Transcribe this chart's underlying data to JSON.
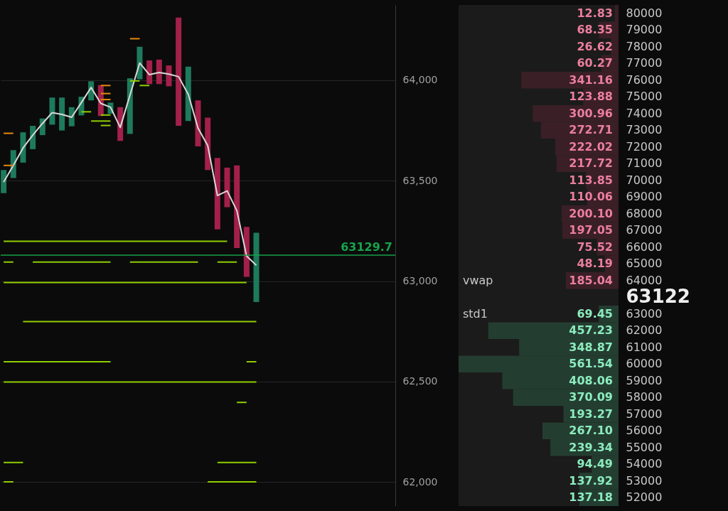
{
  "chart_data": [
    {
      "type": "bar",
      "categories": [
        null,
        null,
        null,
        null,
        null,
        null,
        null,
        null,
        null,
        null,
        null,
        null,
        null,
        null,
        null,
        null,
        null,
        null,
        null,
        null,
        null,
        null,
        null,
        null,
        null,
        null,
        null,
        null,
        null,
        null,
        null,
        null,
        null,
        null,
        null,
        null,
        null,
        null,
        null,
        null,
        null
      ],
      "ylim": [
        61880,
        64375
      ],
      "yticks": [
        {
          "value": 62000,
          "label": "62,000"
        },
        {
          "value": 62500,
          "label": "62,500"
        },
        {
          "value": 63000,
          "label": "63,000"
        },
        {
          "value": 63500,
          "label": "63,500"
        },
        {
          "value": 64000,
          "label": "64,000"
        }
      ],
      "grid": "y",
      "tick_labels": "y",
      "series": [
        {
          "type": "bar",
          "base": [
            63438,
            63513,
            63590,
            63657,
            63727,
            63779,
            63750,
            63771,
            63825,
            63900,
            63822,
            63833,
            63698,
            63733,
            64005,
            63981,
            63981,
            63970,
            63773,
            63797,
            63671,
            63553,
            63258,
            63368,
            63165,
            63021,
            62896,
            null,
            null,
            null,
            null,
            null,
            null,
            null,
            null,
            null,
            null,
            null,
            null,
            null,
            null
          ],
          "values": [
            115,
            139,
            151,
            116,
            83,
            135,
            164,
            95,
            93,
            95,
            154,
            56,
            168,
            277,
            162,
            118,
            122,
            104,
            539,
            271,
            229,
            261,
            355,
            197,
            411,
            249,
            345,
            null,
            null,
            null,
            null,
            null,
            null,
            null,
            null,
            null,
            null,
            null,
            null,
            null,
            null
          ],
          "colors": [
            "#1e7a5c",
            "#1e7a5c",
            "#1e7a5c",
            "#1e7a5c",
            "#1e7a5c",
            "#1e7a5c",
            "#1e7a5c",
            "#1e7a5c",
            "#1e7a5c",
            "#1e7a5c",
            "#a3204a",
            "#1e7a5c",
            "#a3204a",
            "#1e7a5c",
            "#1e7a5c",
            "#a3204a",
            "#a3204a",
            "#a3204a",
            "#a3204a",
            "#1e7a5c",
            "#a3204a",
            "#a3204a",
            "#a3204a",
            "#a3204a",
            "#a3204a",
            "#a3204a",
            "#1e7a5c",
            null,
            null,
            null,
            null,
            null,
            null,
            null,
            null,
            null,
            null,
            null,
            null,
            null,
            null
          ]
        },
        {
          "type": "line",
          "color": "#d8d8d8",
          "values": [
            63493,
            63576,
            63663,
            63727,
            63785,
            63839,
            63830,
            63816,
            63889,
            63964,
            63885,
            63866,
            63765,
            63926,
            64086,
            64028,
            64039,
            64031,
            64018,
            63930,
            63762,
            63675,
            63426,
            63449,
            63351,
            63125,
            63079,
            null,
            null,
            null,
            null,
            null,
            null,
            null,
            null,
            null,
            null,
            null,
            null,
            null,
            null
          ]
        },
        {
          "type": "line",
          "color": "#8fce00",
          "values": [
            63198,
            63198,
            63198,
            63198,
            63198,
            63198,
            63198,
            63198,
            63198,
            63198,
            63198,
            63198,
            63198,
            63198,
            63198,
            63198,
            63198,
            63198,
            63198,
            63198,
            63198,
            63198,
            63198,
            63198,
            null,
            null,
            null,
            null,
            null,
            null,
            null,
            null,
            null,
            null,
            null,
            null,
            null,
            null,
            null,
            null,
            null
          ]
        },
        {
          "type": "line",
          "color": "#8fce00",
          "values": [
            63095,
            63095,
            null,
            63095,
            63095,
            63095,
            63095,
            63095,
            63095,
            63095,
            63095,
            63095,
            null,
            63095,
            63095,
            63095,
            63095,
            63095,
            63095,
            63095,
            63095,
            null,
            63095,
            63095,
            63095,
            null,
            null,
            null,
            null,
            null,
            null,
            null,
            null,
            null,
            null,
            null,
            null,
            null,
            null,
            null,
            null
          ]
        },
        {
          "type": "line",
          "color": "#8fce00",
          "values": [
            62993,
            62993,
            62993,
            62993,
            62993,
            62993,
            62993,
            62993,
            62993,
            62993,
            62993,
            62993,
            62993,
            62993,
            62993,
            62993,
            62993,
            62993,
            62993,
            62993,
            62993,
            62993,
            62993,
            62993,
            62993,
            62993,
            null,
            null,
            null,
            null,
            null,
            null,
            null,
            null,
            null,
            null,
            null,
            null,
            null,
            null,
            null
          ]
        },
        {
          "type": "line",
          "color": "#8fce00",
          "values": [
            null,
            null,
            62798,
            62798,
            62798,
            62798,
            62798,
            62798,
            62798,
            62798,
            62798,
            62798,
            62798,
            62798,
            62798,
            62798,
            62798,
            62798,
            62798,
            62798,
            62798,
            62798,
            62798,
            62798,
            62798,
            62798,
            62798,
            null,
            null,
            null,
            null,
            null,
            null,
            null,
            null,
            null,
            null,
            null,
            null,
            null,
            null
          ]
        },
        {
          "type": "line",
          "color": "#8fce00",
          "values": [
            62598,
            62598,
            62598,
            62598,
            62598,
            62598,
            62598,
            62598,
            62598,
            62598,
            62598,
            62598,
            null,
            null,
            null,
            null,
            null,
            null,
            null,
            null,
            null,
            null,
            null,
            null,
            null,
            62598,
            62598,
            null,
            null,
            null,
            null,
            null,
            null,
            null,
            null,
            null,
            null,
            null,
            null,
            null,
            null
          ]
        },
        {
          "type": "line",
          "color": "#8fce00",
          "values": [
            62498,
            62498,
            62498,
            62498,
            62498,
            62498,
            62498,
            62498,
            62498,
            62498,
            62498,
            62498,
            62498,
            62498,
            62498,
            62498,
            62498,
            62498,
            62498,
            62498,
            62498,
            62498,
            62498,
            62498,
            62498,
            62498,
            62498,
            null,
            null,
            null,
            null,
            null,
            null,
            null,
            null,
            null,
            null,
            null,
            null,
            null,
            null
          ]
        },
        {
          "type": "line",
          "color": "#8fce00",
          "values": [
            null,
            null,
            null,
            null,
            null,
            null,
            null,
            null,
            null,
            null,
            null,
            null,
            null,
            null,
            null,
            null,
            null,
            null,
            null,
            null,
            null,
            null,
            null,
            null,
            62396,
            62396,
            null,
            null,
            null,
            null,
            null,
            null,
            null,
            null,
            null,
            null,
            null,
            null,
            null,
            null,
            null
          ]
        },
        {
          "type": "line",
          "color": "#8fce00",
          "values": [
            62097,
            62097,
            62097,
            null,
            null,
            null,
            null,
            null,
            null,
            null,
            null,
            null,
            null,
            null,
            null,
            null,
            null,
            null,
            null,
            null,
            null,
            null,
            62097,
            62097,
            62097,
            62097,
            62097,
            null,
            null,
            null,
            null,
            null,
            null,
            null,
            null,
            null,
            null,
            null,
            null,
            null,
            null
          ]
        },
        {
          "type": "line",
          "color": "#8fce00",
          "values": [
            62000,
            62000,
            null,
            null,
            null,
            null,
            null,
            null,
            null,
            null,
            null,
            null,
            null,
            null,
            null,
            null,
            null,
            null,
            null,
            null,
            null,
            62000,
            62000,
            62000,
            62000,
            62000,
            62000,
            null,
            null,
            null,
            null,
            null,
            null,
            null,
            null,
            null,
            null,
            null,
            null,
            null,
            null
          ]
        },
        {
          "type": "line",
          "color": "#e8890c",
          "values": [
            63736,
            63736,
            null,
            null,
            null,
            null,
            null,
            null,
            null,
            null,
            null,
            null,
            null,
            null,
            null,
            null,
            null,
            null,
            null,
            null,
            null,
            null,
            null,
            null,
            null,
            null,
            null,
            null,
            null,
            null,
            null,
            null,
            null,
            null,
            null,
            null,
            null,
            null,
            null,
            null,
            null
          ]
        },
        {
          "type": "line",
          "color": "#e8890c",
          "values": [
            63576,
            63576,
            null,
            null,
            null,
            null,
            null,
            null,
            null,
            null,
            null,
            null,
            null,
            null,
            null,
            null,
            null,
            null,
            null,
            null,
            null,
            null,
            null,
            null,
            null,
            null,
            null,
            null,
            null,
            null,
            null,
            null,
            null,
            null,
            null,
            null,
            null,
            null,
            null,
            null,
            null
          ]
        },
        {
          "type": "line",
          "color": "#e8890c",
          "values": [
            null,
            null,
            null,
            null,
            null,
            null,
            null,
            null,
            null,
            null,
            63974,
            63974,
            null,
            null,
            null,
            null,
            null,
            null,
            null,
            null,
            null,
            null,
            null,
            null,
            null,
            null,
            null,
            null,
            null,
            null,
            null,
            null,
            null,
            null,
            null,
            null,
            null,
            null,
            null,
            null,
            null
          ]
        },
        {
          "type": "line",
          "color": "#e8890c",
          "values": [
            null,
            null,
            null,
            null,
            null,
            null,
            null,
            null,
            null,
            null,
            63934,
            63934,
            null,
            null,
            null,
            null,
            null,
            null,
            null,
            null,
            null,
            null,
            null,
            null,
            null,
            null,
            null,
            null,
            null,
            null,
            null,
            null,
            null,
            null,
            null,
            null,
            null,
            null,
            null,
            null,
            null
          ]
        },
        {
          "type": "line",
          "color": "#e8890c",
          "values": [
            null,
            null,
            null,
            null,
            null,
            null,
            null,
            null,
            null,
            null,
            63904,
            63904,
            null,
            null,
            null,
            null,
            null,
            null,
            null,
            null,
            null,
            null,
            null,
            null,
            null,
            null,
            null,
            null,
            null,
            null,
            null,
            null,
            null,
            null,
            null,
            null,
            null,
            null,
            null,
            null,
            null
          ]
        },
        {
          "type": "line",
          "color": "#e8890c",
          "values": [
            null,
            null,
            null,
            null,
            null,
            null,
            null,
            null,
            null,
            null,
            null,
            null,
            null,
            64207,
            64207,
            null,
            null,
            null,
            null,
            null,
            null,
            null,
            null,
            null,
            null,
            null,
            null,
            null,
            null,
            null,
            null,
            null,
            null,
            null,
            null,
            null,
            null,
            null,
            null,
            null,
            null
          ]
        },
        {
          "type": "line",
          "color": "#8fce00",
          "values": [
            null,
            null,
            null,
            null,
            null,
            null,
            null,
            null,
            63843,
            63843,
            null,
            null,
            null,
            null,
            null,
            null,
            null,
            null,
            null,
            null,
            null,
            null,
            null,
            null,
            null,
            null,
            null,
            null,
            null,
            null,
            null,
            null,
            null,
            null,
            null,
            null,
            null,
            null,
            null,
            null,
            null
          ]
        },
        {
          "type": "line",
          "color": "#8fce00",
          "values": [
            null,
            null,
            null,
            null,
            null,
            null,
            null,
            null,
            null,
            63797,
            63797,
            63797,
            null,
            null,
            null,
            null,
            null,
            null,
            null,
            null,
            null,
            null,
            null,
            null,
            null,
            null,
            null,
            null,
            null,
            null,
            null,
            null,
            null,
            null,
            null,
            null,
            null,
            null,
            null,
            null,
            null
          ]
        },
        {
          "type": "line",
          "color": "#8fce00",
          "values": [
            null,
            null,
            null,
            null,
            null,
            null,
            null,
            null,
            null,
            null,
            63775,
            63775,
            null,
            null,
            null,
            null,
            null,
            null,
            null,
            null,
            null,
            null,
            null,
            null,
            null,
            null,
            null,
            null,
            null,
            null,
            null,
            null,
            null,
            null,
            null,
            null,
            null,
            null,
            null,
            null,
            null
          ]
        },
        {
          "type": "line",
          "color": "#8fce00",
          "values": [
            null,
            null,
            null,
            null,
            null,
            null,
            null,
            null,
            null,
            null,
            63827,
            63827,
            null,
            null,
            null,
            null,
            null,
            null,
            null,
            null,
            null,
            null,
            null,
            null,
            null,
            null,
            null,
            null,
            null,
            null,
            null,
            null,
            null,
            null,
            null,
            null,
            null,
            null,
            null,
            null,
            null
          ]
        },
        {
          "type": "line",
          "color": "#8fce00",
          "values": [
            null,
            null,
            null,
            null,
            null,
            null,
            null,
            null,
            null,
            null,
            null,
            null,
            null,
            63997,
            63997,
            null,
            null,
            null,
            null,
            null,
            null,
            null,
            null,
            null,
            null,
            null,
            null,
            null,
            null,
            null,
            null,
            null,
            null,
            null,
            null,
            null,
            null,
            null,
            null,
            null,
            null
          ]
        },
        {
          "type": "line",
          "color": "#8fce00",
          "values": [
            null,
            null,
            null,
            null,
            null,
            null,
            null,
            null,
            null,
            null,
            null,
            null,
            null,
            null,
            63974,
            63974,
            null,
            null,
            null,
            null,
            null,
            null,
            null,
            null,
            null,
            null,
            null,
            null,
            null,
            null,
            null,
            null,
            null,
            null,
            null,
            null,
            null,
            null,
            null,
            null,
            null
          ]
        }
      ],
      "ref_lines": [
        {
          "axis": "y",
          "value": 63129.7,
          "label": "63129.7",
          "color": "#16a34a"
        }
      ]
    },
    {
      "type": "bar",
      "orientation": "horizontal",
      "tick_labels": "y",
      "categories": [
        "80000",
        "79000",
        "78000",
        "77000",
        "76000",
        "75000",
        "74000",
        "73000",
        "72000",
        "71000",
        "70000",
        "69000",
        "68000",
        "67000",
        "66000",
        "65000",
        "64000",
        "63122",
        "63000",
        "62000",
        "61000",
        "60000",
        "59000",
        "58000",
        "57000",
        "56000",
        "55000",
        "54000",
        "53000",
        "52000"
      ],
      "values": [
        12.83,
        68.35,
        26.62,
        60.27,
        341.16,
        123.88,
        300.96,
        272.71,
        222.02,
        217.72,
        113.85,
        110.06,
        200.1,
        197.05,
        75.52,
        48.19,
        185.04,
        null,
        69.45,
        457.23,
        348.87,
        561.54,
        408.06,
        370.09,
        193.27,
        267.1,
        239.34,
        94.49,
        137.92,
        137.18
      ],
      "value_labels": [
        "12.83",
        "68.35",
        "26.62",
        "60.27",
        "341.16",
        "123.88",
        "300.96",
        "272.71",
        "222.02",
        "217.72",
        "113.85",
        "110.06",
        "200.10",
        "197.05",
        "75.52",
        "48.19",
        "185.04",
        null,
        "69.45",
        "457.23",
        "348.87",
        "561.54",
        "408.06",
        "370.09",
        "193.27",
        "267.10",
        "239.34",
        "94.49",
        "137.92",
        "137.18"
      ],
      "colors": [
        "#3a1f27",
        "#3a1f27",
        "#3a1f27",
        "#3a1f27",
        "#3a1f27",
        "#3a1f27",
        "#3a1f27",
        "#3a1f27",
        "#3a1f27",
        "#3a1f27",
        "#3a1f27",
        "#3a1f27",
        "#3a1f27",
        "#3a1f27",
        "#3a1f27",
        "#3a1f27",
        "#3a1f27",
        null,
        "#243d31",
        "#243d31",
        "#243d31",
        "#243d31",
        "#243d31",
        "#243d31",
        "#243d31",
        "#243d31",
        "#243d31",
        "#243d31",
        "#243d31",
        "#243d31"
      ],
      "annotations": [
        "vwap",
        "std1"
      ]
    }
  ]
}
